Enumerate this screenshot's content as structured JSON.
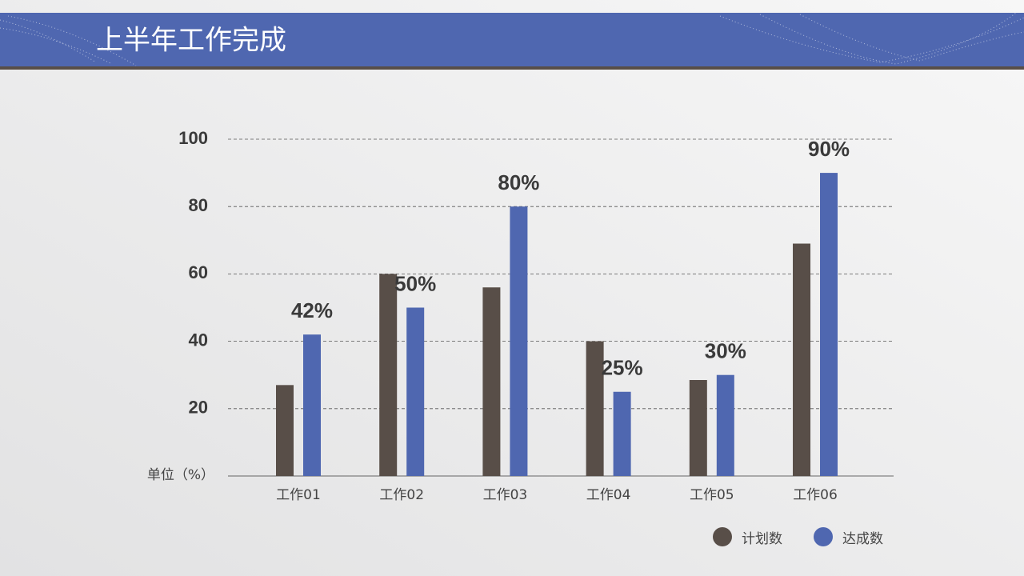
{
  "chart_data": {
    "type": "bar",
    "title": "上半年工作完成",
    "y_label": "单位（%）",
    "categories": [
      "工作01",
      "工作02",
      "工作03",
      "工作04",
      "工作05",
      "工作06"
    ],
    "series": [
      {
        "name": "计划数",
        "color": "#584e48",
        "values": [
          27,
          60,
          56,
          40,
          28.5,
          69
        ]
      },
      {
        "name": "达成数",
        "color": "#4f67b0",
        "values": [
          42,
          50,
          80,
          25,
          30,
          90
        ],
        "value_labels": [
          "42%",
          "50%",
          "80%",
          "25%",
          "30%",
          "90%"
        ]
      }
    ],
    "ylim": [
      0,
      100
    ],
    "yticks": [
      20,
      40,
      60,
      80,
      100
    ],
    "grid": true
  }
}
